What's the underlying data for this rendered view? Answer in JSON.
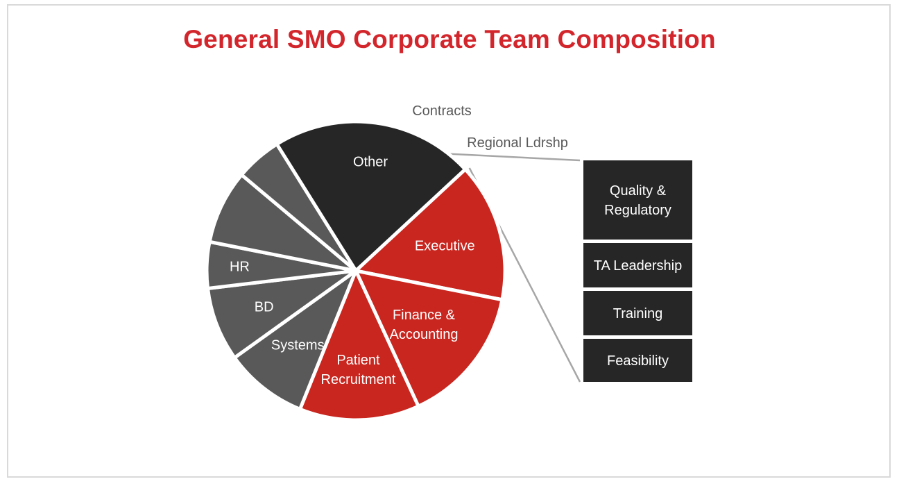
{
  "slide": {
    "title": "General SMO Corporate Team Composition"
  },
  "colors": {
    "title": "#d2262c",
    "red": "#c8261f",
    "gray": "#595959",
    "dark": "#262626",
    "outside_label": "#595959",
    "connector": "#a6a6a6"
  },
  "chart_data": {
    "type": "pie",
    "title": "General SMO Corporate Team Composition",
    "series": [
      {
        "slices": [
          {
            "label": "Other",
            "value": 22,
            "color": "#262626",
            "label_position": "inside"
          },
          {
            "label": "Executive",
            "value": 15,
            "color": "#c8261f",
            "label_position": "inside"
          },
          {
            "label": "Finance & Accounting",
            "value": 15,
            "color": "#c8261f",
            "label_position": "inside"
          },
          {
            "label": "Patient Recruitment",
            "value": 13,
            "color": "#c8261f",
            "label_position": "inside"
          },
          {
            "label": "Systems",
            "value": 9,
            "color": "#595959",
            "label_position": "inside"
          },
          {
            "label": "BD",
            "value": 8,
            "color": "#595959",
            "label_position": "inside"
          },
          {
            "label": "HR",
            "value": 5,
            "color": "#595959",
            "label_position": "inside"
          },
          {
            "label": "Contracts",
            "value": 8,
            "color": "#595959",
            "label_position": "outside"
          },
          {
            "label": "Regional Ldrshp",
            "value": 5,
            "color": "#595959",
            "label_position": "outside"
          }
        ]
      }
    ],
    "breakout": {
      "parent": "Other",
      "items": [
        "Quality & Regulatory",
        "TA Leadership",
        "Training",
        "Feasibility"
      ],
      "color": "#262626"
    }
  }
}
